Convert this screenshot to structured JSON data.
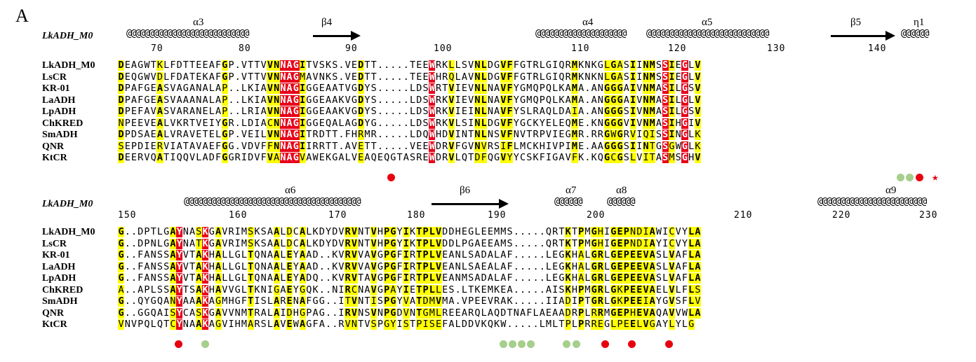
{
  "panel_letter": "A",
  "block1": {
    "ref_title": "LkADH_M0",
    "ss_labels": [
      "α3",
      "β4",
      "α4",
      "α5",
      "β5",
      "η1"
    ],
    "ruler": [
      "70",
      "80",
      "90",
      "100",
      "110",
      "120",
      "130",
      "140"
    ],
    "rows": [
      {
        "name": "LkADH_M0",
        "seq": "DEAGWTKLFDTTEEAFGP.VTTVVNNAGITVSKS.VEDTT.....TEEWRKLLSVNLDGVFFGTRLGIQRMKNKGLGASIINMSSIEGLV"
      },
      {
        "name": "LsCR",
        "seq": "DEQGWVDLFDATEKAFGP.VTTVVNNAGMAVNKS.VEDTT.....TEEWHRQLAVNLDGVFFGTRLGIQRMKNKNLGASIINMSSIEGLV"
      },
      {
        "name": "KR-01",
        "seq": "DPAFGEASVAGANALAP..LKIAVNNAGIGGEAATVGDYS.....LDSWRTVIEVNLNAVFYGMQPQLKAMA.ANGGGAIVNMASILGSV"
      },
      {
        "name": "LaADH",
        "seq": "DPAFGEASVAAANALAP..LKIAVNNAGIGGEAAKVGDYS.....LDSWRKVIEVNLNAVFYGMQPQLKAMA.ANGGGAIVNMASILGLV"
      },
      {
        "name": "LpADH",
        "seq": "DPEFAVASVARANELAP..LRIAVNNAGIGGEAAKVGDYS.....LDSWRKVIEINLNAVFYSLRAQLDAIA.ANGGGSIVNMASILGSV"
      },
      {
        "name": "ChKRED",
        "seq": "NPEEVEALVKRTVEIYGR.LDIACNNAGIGGEQALAGDYG.....LDSWRKVLSINLDGVFYGCKYELEQME.KNGGGVIVNMASIHGIV"
      },
      {
        "name": "SmADH",
        "seq": "DPDSAEALVRAVETELGP.VEILVNNAGITRDTT.FHRMR.....LDQWHDVINTNLNSVFNVTRPVIEGMR.RRGWGRVIQISSINGLK"
      },
      {
        "name": "QNR",
        "seq": "SEPDIERVIATAVAEFGG.VDVFFNNAGIIRRTT.AVETT.....VEEWDRVFGVNVRSIFLMCKHIVPIME.AAGGGSIINTGSGWGLK"
      },
      {
        "name": "KtCR",
        "seq": "DEERVQATIQQVLADFGGRIDVFVANAGVAWEKGALVEAQEQGTASREWDRVLQTDFQGVYYCSKFIGAVFK.KQGCGSLVITASMSGHV"
      }
    ]
  },
  "block2": {
    "ref_title": "LkADH_M0",
    "ss_labels": [
      "α6",
      "β6",
      "α7",
      "α8",
      "α9"
    ],
    "ruler": [
      "150",
      "160",
      "170",
      "180",
      "190",
      "200",
      "210",
      "220",
      "230"
    ],
    "rows": [
      {
        "name": "LkADH_M0",
        "seq": "G..DPTLGAYNASKGAVRIMSKSAALDCALKDYDVRVNTVHPGYIKTPLVDDHEGLEEMMS.....QRTKTPMGHIGEPNDIAWICVYLA"
      },
      {
        "name": "LsCR",
        "seq": "G..DPNLGAYNATKGAVRIMSKSAALDCALKDYDVRVNTVHPGYIKTPLVDDLPGAEEAMS.....QRTKTPMGHIGEPNDIAYICVYLA"
      },
      {
        "name": "KR-01",
        "seq": "G..FANSSAYVTAKHALLGLTQNAALEYAAD..KVRVVAVGPGFIRTPLVEANLSADALAF.....LEGKHALGRLGEPEEVASLVAFLA"
      },
      {
        "name": "LaADH",
        "seq": "G..FANSSAYVTAKHALLGLTQNAALEYAAD..KVRVVAVGPGFIRTPLVEANLSAEALAF.....LEGKHALGRLGEPEEVASLVAFLA"
      },
      {
        "name": "LpADH",
        "seq": "G..FANSSAYVTAKHALLGLTQNAALEYADQ..KVRVTAVGPGFIRTPLVEANMSADALAF.....LEGKHALGRLGEPEEVASLVAFLA"
      },
      {
        "name": "ChKRED",
        "seq": "A..APLSSAYTSAKHAVVGLTKNIGAEYGQK..NIRCNAVGPAYIETPLLES.LTKEMKEA.....AISKHPMGRLGKPEEVAELVLFLS"
      },
      {
        "name": "SmADH",
        "seq": "G..QYGQANYAAAKAGMHGFTISLARENAFGG..ITVNTISPGYVATDMVMA.VPEEVRAK.....IIADIPTGRLGKPEEIAYGVSFLV"
      },
      {
        "name": "QNR",
        "seq": "G..GGQAISYCASKGAVVNMTRALAIDHGPAG..IRVNSVNPGDVNTGMLREEARQLAQDTNAFLAEAADRPLRRMGEPHEVAQAVVWLA"
      },
      {
        "name": "KtCR",
        "seq": "VNVPQLQTCYNAAKAGVIHMARSLAVEWAGFA..RVNTVSPGYISTPISEFALDDVKQKW.....LMLTPLPRREGLPEELVGAYLYLG"
      }
    ]
  }
}
